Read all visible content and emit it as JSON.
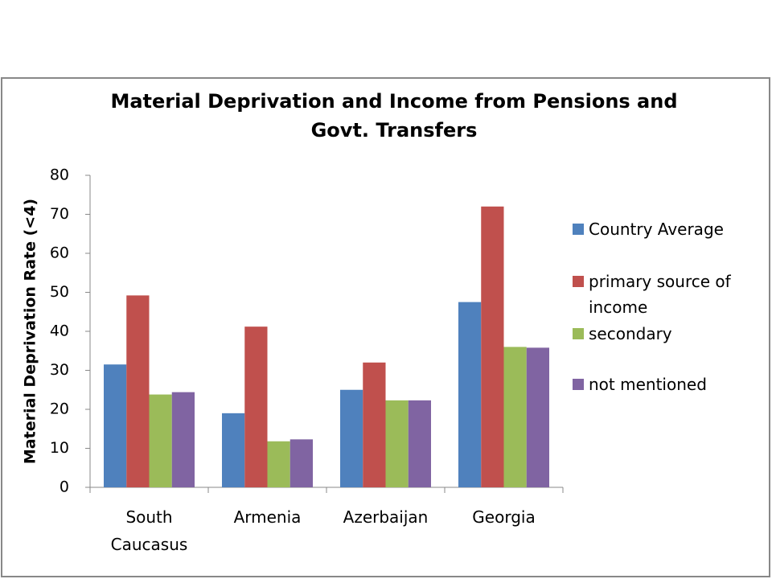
{
  "chart_data": {
    "type": "bar",
    "title": "Material Deprivation and Income from Pensions and Govt. Transfers",
    "y_label": "Material Deprivation Rate (<4)",
    "categories": [
      "South Caucasus",
      "Armenia",
      "Azerbaijan",
      "Georgia"
    ],
    "series": [
      {
        "name": "Country Average",
        "color": "#4f81bd",
        "values": [
          31.5,
          19,
          25,
          47.5
        ]
      },
      {
        "name": "primary source of income",
        "color": "#c0504d",
        "values": [
          49.2,
          41.2,
          32,
          72
        ]
      },
      {
        "name": "secondary",
        "color": "#9bbb59",
        "values": [
          23.8,
          11.8,
          22.3,
          36
        ]
      },
      {
        "name": "not mentioned",
        "color": "#8064a2",
        "values": [
          24.4,
          12.3,
          22.3,
          35.8
        ]
      }
    ],
    "ylim": [
      0,
      80
    ],
    "yticks": [
      0,
      10,
      20,
      30,
      40,
      50,
      60,
      70,
      80
    ],
    "grid": false,
    "legend": "right"
  }
}
